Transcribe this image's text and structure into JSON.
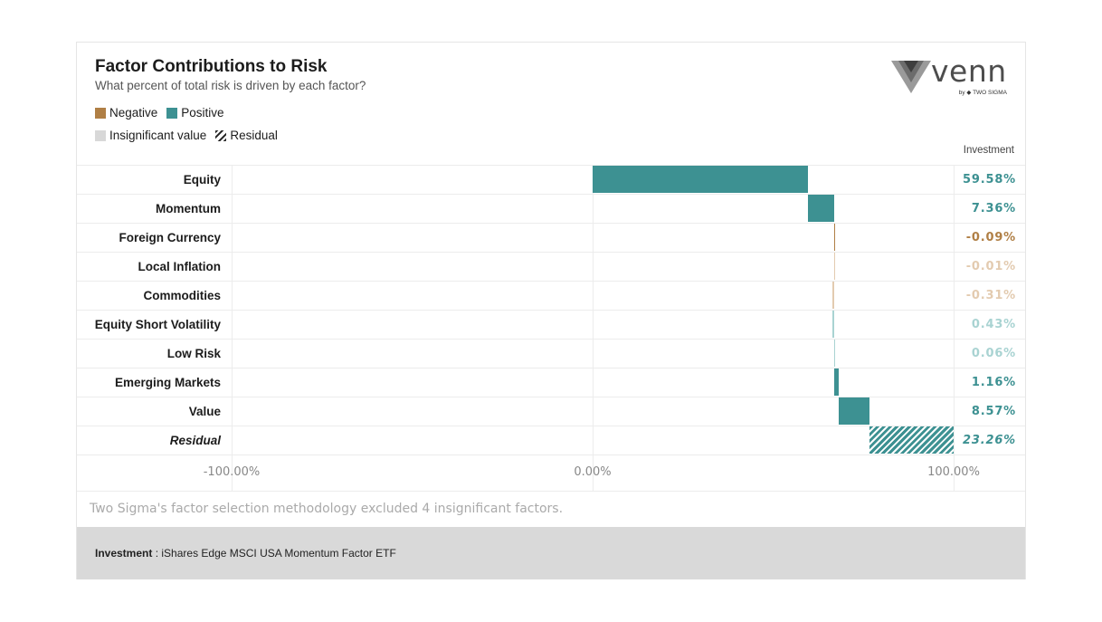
{
  "title": "Factor Contributions to Risk",
  "subtitle": "What percent of total risk is driven by each factor?",
  "logo": {
    "word": "venn",
    "by": "by ◆ TWO SIGMA"
  },
  "legend": {
    "negative": "Negative",
    "positive": "Positive",
    "insignificant": "Insignificant value",
    "residual": "Residual"
  },
  "colors": {
    "positive": "#3d9192",
    "negative": "#b07f45",
    "positive_faded": "#a9d3d2",
    "negative_faded": "#e3cbb0",
    "insignificant": "#d8d8d8"
  },
  "column_header": "Investment",
  "axis": {
    "ticks": [
      "-100.00%",
      "0.00%",
      "100.00%"
    ]
  },
  "chart_data": {
    "type": "bar",
    "subtype": "waterfall-horizontal",
    "title": "Factor Contributions to Risk",
    "subtitle": "What percent of total risk is driven by each factor?",
    "xlim": [
      -100,
      100
    ],
    "xticks": [
      -100,
      0,
      100
    ],
    "categories": [
      "Equity",
      "Momentum",
      "Foreign Currency",
      "Local Inflation",
      "Commodities",
      "Equity Short Volatility",
      "Low Risk",
      "Emerging Markets",
      "Value",
      "Residual"
    ],
    "values": [
      59.58,
      7.36,
      -0.09,
      -0.01,
      -0.31,
      0.43,
      0.06,
      1.16,
      8.57,
      23.26
    ],
    "rows": [
      {
        "label": "Equity",
        "value": 59.58,
        "display": "59.58%",
        "kind": "positive"
      },
      {
        "label": "Momentum",
        "value": 7.36,
        "display": "7.36%",
        "kind": "positive"
      },
      {
        "label": "Foreign Currency",
        "value": -0.09,
        "display": "-0.09%",
        "kind": "negative"
      },
      {
        "label": "Local Inflation",
        "value": -0.01,
        "display": "-0.01%",
        "kind": "negative_faded"
      },
      {
        "label": "Commodities",
        "value": -0.31,
        "display": "-0.31%",
        "kind": "negative_faded"
      },
      {
        "label": "Equity Short Volatility",
        "value": 0.43,
        "display": "0.43%",
        "kind": "positive_faded"
      },
      {
        "label": "Low Risk",
        "value": 0.06,
        "display": "0.06%",
        "kind": "positive_faded"
      },
      {
        "label": "Emerging Markets",
        "value": 1.16,
        "display": "1.16%",
        "kind": "positive"
      },
      {
        "label": "Value",
        "value": 8.57,
        "display": "8.57%",
        "kind": "positive"
      },
      {
        "label": "Residual",
        "value": 23.26,
        "display": "23.26%",
        "kind": "residual"
      }
    ]
  },
  "footnote": "Two Sigma's factor selection methodology excluded 4 insignificant factors.",
  "footer": {
    "label": "Investment",
    "separator": " : ",
    "value": "iShares Edge MSCI USA Momentum Factor ETF"
  }
}
